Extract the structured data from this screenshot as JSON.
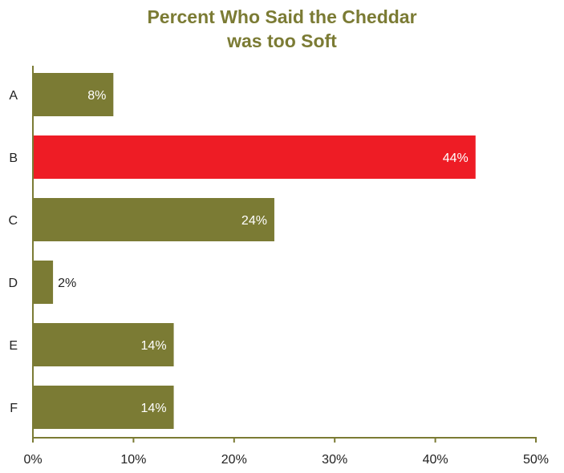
{
  "colors": {
    "bar_default": "#7b7b34",
    "bar_highlight": "#ee1c25",
    "axis": "#7b7b34",
    "title": "#7b7b34",
    "inside_label": "#ffffff",
    "outside_label": "#222222",
    "tick_label": "#222222"
  },
  "chart_data": {
    "type": "bar",
    "orientation": "horizontal",
    "title": "Percent Who Said the Cheddar was too Soft",
    "title_lines": [
      "Percent Who Said the Cheddar",
      "was too Soft"
    ],
    "xlabel": "",
    "ylabel": "",
    "categories": [
      "A",
      "B",
      "C",
      "D",
      "E",
      "F"
    ],
    "values": [
      8,
      44,
      24,
      2,
      14,
      14
    ],
    "value_labels": [
      "8%",
      "44%",
      "24%",
      "2%",
      "14%",
      "14%"
    ],
    "highlight_category": "B",
    "xlim": [
      0,
      50
    ],
    "x_ticks": [
      0,
      10,
      20,
      30,
      40,
      50
    ],
    "x_tick_labels": [
      "0%",
      "10%",
      "20%",
      "30%",
      "40%",
      "50%"
    ],
    "grid": false,
    "legend": "none"
  }
}
